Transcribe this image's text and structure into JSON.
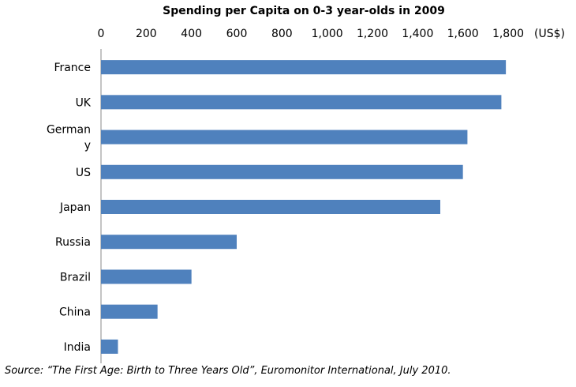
{
  "chart_data": {
    "type": "bar",
    "orientation": "horizontal",
    "title": "Spending per Capita on 0-3 year-olds in 2009",
    "unit_label": "(US$)",
    "categories": [
      "France",
      "UK",
      "Germany",
      "US",
      "Japan",
      "Russia",
      "Brazil",
      "China",
      "India"
    ],
    "category_display": [
      [
        "France"
      ],
      [
        "UK"
      ],
      [
        "German",
        "y"
      ],
      [
        "US"
      ],
      [
        "Japan"
      ],
      [
        "Russia"
      ],
      [
        "Brazil"
      ],
      [
        "China"
      ],
      [
        "India"
      ]
    ],
    "values": [
      1790,
      1770,
      1620,
      1600,
      1500,
      600,
      400,
      250,
      75
    ],
    "xlim": [
      0,
      1800
    ],
    "ticks": [
      0,
      200,
      400,
      600,
      800,
      1000,
      1200,
      1400,
      1600,
      1800
    ],
    "tick_labels": [
      "0",
      "200",
      "400",
      "600",
      "800",
      "1,000",
      "1,200",
      "1,400",
      "1,600",
      "1,800"
    ],
    "axis_position": "top",
    "grid": false,
    "legend": "none",
    "bar_color": "#4F81BD"
  },
  "source": "Source: “The First Age: Birth to Three Years Old”, Euromonitor International, July 2010."
}
